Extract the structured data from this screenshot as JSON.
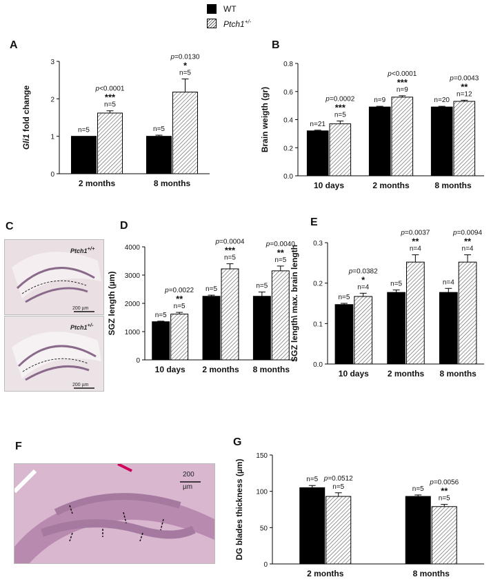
{
  "legend": {
    "wt_label": "WT",
    "ptch_base": "Ptch1",
    "ptch_sup": "+/-"
  },
  "colors": {
    "wt": "#000000",
    "hatch": "#555555"
  },
  "images": {
    "C_top_label_base": "Ptch1",
    "C_top_label_sup": "+/+",
    "C_bottom_label_base": "Ptch1",
    "C_bottom_label_sup": "+/-",
    "C_scale": "200 µm",
    "F_scale_top": "200",
    "F_scale_bottom": "µm"
  },
  "panel_letters": [
    "A",
    "B",
    "C",
    "D",
    "E",
    "F",
    "G"
  ],
  "chart_data": [
    {
      "id": "A",
      "type": "bar",
      "categories": [
        "2 months",
        "8 months"
      ],
      "ylabel_italic": "Gli1",
      "ylabel_rest": " fold change",
      "ylim": [
        0,
        3
      ],
      "yticks": [
        0,
        1,
        2,
        3
      ],
      "series": [
        {
          "values": [
            1.0,
            1.0
          ],
          "errors": [
            0.0,
            0.03
          ]
        },
        {
          "values": [
            1.62,
            2.18
          ],
          "errors": [
            0.06,
            0.35
          ]
        }
      ],
      "annotations": [
        {
          "p": "p<0.0001",
          "stars": "***",
          "n_wt": "n=5",
          "n_ptch": "n=5"
        },
        {
          "p": "p=0.0130",
          "stars": "*",
          "n_wt": "n=5",
          "n_ptch": "n=5"
        }
      ]
    },
    {
      "id": "B",
      "type": "bar",
      "categories": [
        "10 days",
        "2 months",
        "8 months"
      ],
      "ylabel_rest": "Brain weigth (gr)",
      "ylim": [
        0,
        0.8
      ],
      "yticks": [
        0.0,
        0.2,
        0.4,
        0.6,
        0.8
      ],
      "decimals": 1,
      "series": [
        {
          "values": [
            0.32,
            0.49,
            0.49
          ],
          "errors": [
            0.005,
            0.005,
            0.005
          ]
        },
        {
          "values": [
            0.37,
            0.56,
            0.53
          ],
          "errors": [
            0.02,
            0.01,
            0.008
          ]
        }
      ],
      "annotations": [
        {
          "p": "p=0.0002",
          "stars": "***",
          "n_wt": "n=21",
          "n_ptch": "n=5"
        },
        {
          "p": "p<0.0001",
          "stars": "***",
          "n_wt": "n=9",
          "n_ptch": "n=9"
        },
        {
          "p": "p=0.0043",
          "stars": "**",
          "n_wt": "n=20",
          "n_ptch": "n=12"
        }
      ]
    },
    {
      "id": "D",
      "type": "bar",
      "categories": [
        "10 days",
        "2 months",
        "8 months"
      ],
      "ylabel_rest": "SGZ length (µm)",
      "ylim": [
        0,
        4000
      ],
      "yticks": [
        0,
        1000,
        2000,
        3000,
        4000
      ],
      "series": [
        {
          "values": [
            1350,
            2250,
            2250
          ],
          "errors": [
            20,
            40,
            150
          ]
        },
        {
          "values": [
            1620,
            3220,
            3150
          ],
          "errors": [
            60,
            180,
            170
          ]
        }
      ],
      "annotations": [
        {
          "p": "p=0.0022",
          "stars": "**",
          "n_wt": "n=5",
          "n_ptch": "n=5"
        },
        {
          "p": "p=0.0004",
          "stars": "***",
          "n_wt": "n=5",
          "n_ptch": "n=5"
        },
        {
          "p": "p=0.0040",
          "stars": "**",
          "n_wt": "n=5",
          "n_ptch": "n=5"
        }
      ]
    },
    {
      "id": "E",
      "type": "bar",
      "categories": [
        "10 days",
        "2 months",
        "8 months"
      ],
      "ylabel_rest": "SGZ length\\ max. brain length",
      "ylim": [
        0,
        0.3
      ],
      "yticks": [
        0.0,
        0.1,
        0.2,
        0.3
      ],
      "decimals": 1,
      "series": [
        {
          "values": [
            0.147,
            0.177,
            0.177
          ],
          "errors": [
            0.003,
            0.006,
            0.01
          ]
        },
        {
          "values": [
            0.167,
            0.252,
            0.252
          ],
          "errors": [
            0.008,
            0.018,
            0.018
          ]
        }
      ],
      "annotations": [
        {
          "p": "p=0.0382",
          "stars": "*",
          "n_wt": "n=5",
          "n_ptch": "n=4"
        },
        {
          "p": "p=0.0037",
          "stars": "**",
          "n_wt": "n=5",
          "n_ptch": "n=4"
        },
        {
          "p": "p=0.0094",
          "stars": "**",
          "n_wt": "n=4",
          "n_ptch": "n=4"
        }
      ]
    },
    {
      "id": "G",
      "type": "bar",
      "categories": [
        "2 months",
        "8 months"
      ],
      "ylabel_rest": "DG blades thickness (µm)",
      "ylim": [
        0,
        150
      ],
      "yticks": [
        0,
        50,
        100,
        150
      ],
      "series": [
        {
          "values": [
            105,
            93
          ],
          "errors": [
            3,
            2
          ]
        },
        {
          "values": [
            93,
            79
          ],
          "errors": [
            5,
            3
          ]
        }
      ],
      "annotations": [
        {
          "p": "p=0.0512",
          "stars": "",
          "n_wt": "n=5",
          "n_ptch": "n=5"
        },
        {
          "p": "p=0.0056",
          "stars": "**",
          "n_wt": "n=5",
          "n_ptch": "n=5"
        }
      ]
    }
  ]
}
